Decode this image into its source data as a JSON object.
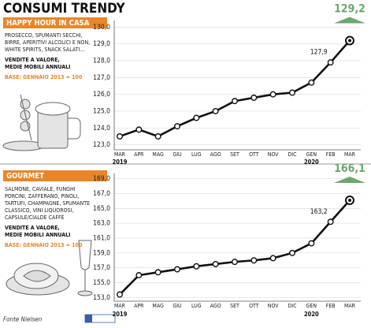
{
  "title": "CONSUMI TRENDY",
  "source": "Fonte Nielsen",
  "chart_data": [
    {
      "type": "line",
      "title": "HAPPY HOUR IN CASA",
      "description": [
        "PROSECCO, SPUMANTI SECCHI,",
        "BIRRE, APERITIVI ALCOLICI E NON,",
        "WHITE SPIRITS, SNACK SALATI..."
      ],
      "measure": [
        "VENDITE A VALORE,",
        "MEDIE MOBILI ANNUALI"
      ],
      "base": "BASE: GENNAIO 2013 = 100",
      "categories": [
        "MAR",
        "APR",
        "MAG",
        "GIU",
        "LUG",
        "AGO",
        "SET",
        "OTT",
        "NOV",
        "DIC",
        "GEN",
        "FEB",
        "MAR"
      ],
      "years": [
        "2019",
        null,
        null,
        null,
        null,
        null,
        null,
        null,
        null,
        null,
        "2020",
        null,
        null
      ],
      "values": [
        123.5,
        123.9,
        123.5,
        124.1,
        124.6,
        125.0,
        125.6,
        125.8,
        126.0,
        126.1,
        126.7,
        127.9,
        129.2
      ],
      "value_labels": [
        null,
        null,
        null,
        null,
        null,
        null,
        null,
        null,
        null,
        null,
        null,
        "127,9",
        "129,2"
      ],
      "color": "#111111",
      "highlight_color": "#6fa56f",
      "header_color": "#e8862a",
      "ylim": [
        122.7,
        130.3
      ],
      "yticks": [
        {
          "value": 123,
          "label": "123,0"
        },
        {
          "value": 124,
          "label": "124,0"
        },
        {
          "value": 125,
          "label": "125,0"
        },
        {
          "value": 126,
          "label": "126,0"
        },
        {
          "value": 127,
          "label": "127,0"
        },
        {
          "value": 128,
          "label": "128,0"
        },
        {
          "value": 129,
          "label": "129,0"
        },
        {
          "value": 130,
          "label": "130,0"
        }
      ],
      "grid": true
    },
    {
      "type": "line",
      "title": "GOURMET",
      "description": [
        "SALMONE, CAVIALE, FUNGHI",
        "PORCINI, ZAFFERANO, PINOLI,",
        "TARTUFI, CHAMPAGNE, SPUMANTE",
        "CLASSICO, VINI LIQUOROSI,",
        "CAPSULE/CIALDE CAFFÈ"
      ],
      "measure": [
        "VENDITE A VALORE,",
        "MEDIE MOBILI ANNUALI"
      ],
      "base": "BASE: GENNAIO 2013 = 100",
      "categories": [
        "MAR",
        "APR",
        "MAG",
        "GIU",
        "LUG",
        "AGO",
        "SET",
        "OTT",
        "NOV",
        "DIC",
        "GEN",
        "FEB",
        "MAR"
      ],
      "years": [
        "2019",
        null,
        null,
        null,
        null,
        null,
        null,
        null,
        null,
        null,
        "2020",
        null,
        null
      ],
      "values": [
        153.4,
        156.0,
        156.4,
        156.8,
        157.2,
        157.5,
        157.8,
        158.0,
        158.3,
        159.0,
        160.3,
        163.2,
        166.1
      ],
      "value_labels": [
        null,
        null,
        null,
        null,
        null,
        null,
        null,
        null,
        null,
        null,
        null,
        "163,2",
        "166,1"
      ],
      "color": "#111111",
      "highlight_color": "#6fa56f",
      "header_color": "#e8862a",
      "ylim": [
        152.5,
        169.5
      ],
      "yticks": [
        {
          "value": 153,
          "label": "153,0"
        },
        {
          "value": 155,
          "label": "155,0"
        },
        {
          "value": 157,
          "label": "157,0"
        },
        {
          "value": 159,
          "label": "159,0"
        },
        {
          "value": 161,
          "label": "161,0"
        },
        {
          "value": 163,
          "label": "163,0"
        },
        {
          "value": 165,
          "label": "165,0"
        },
        {
          "value": 167,
          "label": "167,0"
        },
        {
          "value": 169,
          "label": "169,0"
        }
      ],
      "grid": true
    }
  ]
}
